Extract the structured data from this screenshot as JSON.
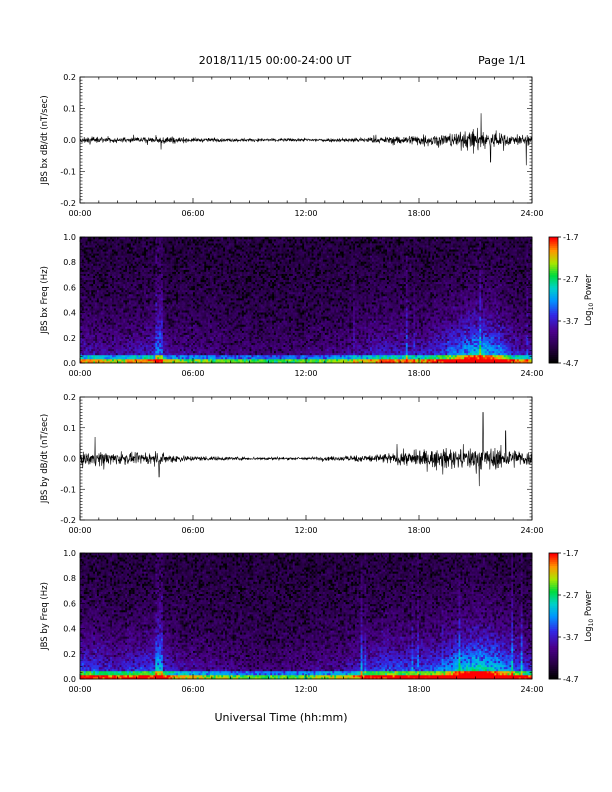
{
  "header": {
    "title": "2018/11/15  00:00-24:00 UT",
    "page": "Page 1/1"
  },
  "chart_data": [
    {
      "type": "line",
      "ylabel": "JBS bx dB/dt (nT/sec)",
      "xlim": [
        "00:00",
        "24:00"
      ],
      "ylim": [
        -0.2,
        0.2
      ],
      "xticks": [
        "00:00",
        "06:00",
        "12:00",
        "18:00",
        "24:00"
      ],
      "yticks": [
        "0.2",
        "0.1",
        "0.0",
        "-0.1",
        "-0.2"
      ],
      "envelope": {
        "hours": [
          0,
          1,
          3,
          4,
          4.5,
          5,
          6,
          9,
          12,
          14,
          16,
          18,
          20,
          21,
          22,
          23,
          24
        ],
        "amplitude": [
          0.012,
          0.012,
          0.01,
          0.012,
          0.02,
          0.013,
          0.008,
          0.006,
          0.006,
          0.008,
          0.012,
          0.022,
          0.03,
          0.045,
          0.032,
          0.022,
          0.018
        ]
      },
      "peaks": [
        {
          "hour": 4.3,
          "value": -0.03
        },
        {
          "hour": 21.3,
          "value": 0.085
        },
        {
          "hour": 21.8,
          "value": -0.07
        },
        {
          "hour": 23.7,
          "value": -0.08
        }
      ],
      "color": "#000000"
    },
    {
      "type": "heatmap",
      "ylabel": "JBS bx Freq (Hz)",
      "xlim": [
        "00:00",
        "24:00"
      ],
      "ylim": [
        0.0,
        1.0
      ],
      "xticks": [
        "00:00",
        "06:00",
        "12:00",
        "18:00",
        "24:00"
      ],
      "yticks": [
        "1.0",
        "0.8",
        "0.6",
        "0.4",
        "0.2",
        "0.0"
      ],
      "colorbar": {
        "label": "Log10 Power",
        "ticks": [
          "-1.7",
          "-2.7",
          "-3.7",
          "-4.7"
        ],
        "range": [
          -4.7,
          -1.7
        ]
      },
      "activity_hours": [
        0,
        2,
        4,
        5,
        6,
        10,
        14,
        16,
        18,
        19,
        20,
        21,
        22,
        23,
        24
      ],
      "activity_level": [
        0.3,
        0.25,
        0.35,
        0.2,
        0.2,
        0.12,
        0.2,
        0.35,
        0.3,
        0.4,
        0.55,
        0.72,
        0.65,
        0.35,
        0.25
      ]
    },
    {
      "type": "line",
      "ylabel": "JBS by dB/dt (nT/sec)",
      "xlim": [
        "00:00",
        "24:00"
      ],
      "ylim": [
        -0.2,
        0.2
      ],
      "xticks": [
        "00:00",
        "06:00",
        "12:00",
        "18:00",
        "24:00"
      ],
      "yticks": [
        "0.2",
        "0.1",
        "0.0",
        "-0.1",
        "-0.2"
      ],
      "envelope": {
        "hours": [
          0,
          1,
          3,
          4,
          4.5,
          5,
          6,
          9,
          12,
          14,
          16,
          18,
          20,
          21,
          22,
          23,
          24
        ],
        "amplitude": [
          0.025,
          0.03,
          0.02,
          0.022,
          0.02,
          0.018,
          0.01,
          0.006,
          0.006,
          0.01,
          0.02,
          0.035,
          0.04,
          0.05,
          0.045,
          0.038,
          0.03
        ]
      },
      "peaks": [
        {
          "hour": 0.8,
          "value": 0.07
        },
        {
          "hour": 4.2,
          "value": -0.06
        },
        {
          "hour": 21.4,
          "value": 0.15
        },
        {
          "hour": 21.2,
          "value": -0.09
        },
        {
          "hour": 22.6,
          "value": 0.09
        }
      ],
      "color": "#000000"
    },
    {
      "type": "heatmap",
      "ylabel": "JBS by Freq (Hz)",
      "xlim": [
        "00:00",
        "24:00"
      ],
      "ylim": [
        0.0,
        1.0
      ],
      "xticks": [
        "00:00",
        "06:00",
        "12:00",
        "18:00",
        "24:00"
      ],
      "yticks": [
        "1.0",
        "0.8",
        "0.6",
        "0.4",
        "0.2",
        "0.0"
      ],
      "colorbar": {
        "label": "Log10 Power",
        "ticks": [
          "-1.7",
          "-2.7",
          "-3.7",
          "-4.7"
        ],
        "range": [
          -4.7,
          -1.7
        ]
      },
      "activity_hours": [
        0,
        2,
        4,
        5,
        6,
        10,
        14,
        16,
        18,
        19,
        20,
        21,
        22,
        23,
        24
      ],
      "activity_level": [
        0.45,
        0.35,
        0.45,
        0.3,
        0.25,
        0.15,
        0.25,
        0.45,
        0.45,
        0.5,
        0.65,
        0.8,
        0.72,
        0.5,
        0.35
      ]
    }
  ],
  "xlabel": "Universal Time (hh:mm)"
}
